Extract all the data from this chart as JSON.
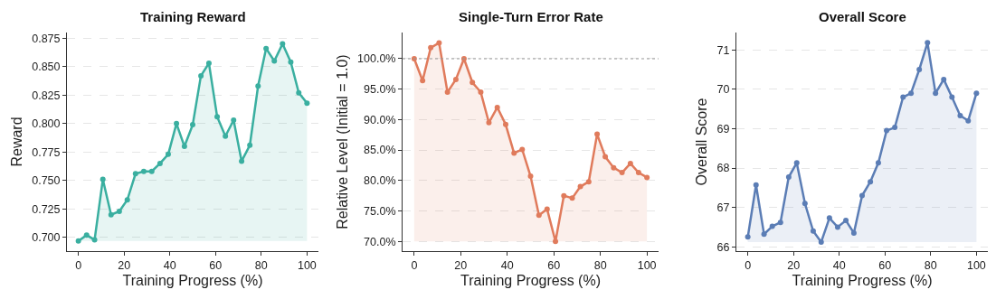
{
  "chart_data": [
    {
      "type": "area",
      "title": "Training Reward",
      "xlabel": "Training Progress (%)",
      "ylabel": "Reward",
      "x": [
        0,
        3.6,
        7.1,
        10.7,
        14.3,
        17.9,
        21.4,
        25,
        28.6,
        32.1,
        35.7,
        39.3,
        42.9,
        46.4,
        50,
        53.6,
        57.1,
        60.7,
        64.3,
        67.9,
        71.4,
        75,
        78.6,
        82.1,
        85.7,
        89.3,
        92.9,
        96.4,
        100
      ],
      "series": [
        {
          "color": "#3aafa0",
          "values": [
            0.697,
            0.702,
            0.698,
            0.751,
            0.72,
            0.723,
            0.733,
            0.756,
            0.758,
            0.758,
            0.765,
            0.773,
            0.8,
            0.78,
            0.799,
            0.842,
            0.853,
            0.806,
            0.789,
            0.803,
            0.767,
            0.781,
            0.833,
            0.866,
            0.855,
            0.87,
            0.854,
            0.827,
            0.818
          ]
        }
      ],
      "xlim": [
        -5,
        105
      ],
      "xticks": [
        0,
        20,
        40,
        60,
        80,
        100
      ],
      "ylim": [
        0.688,
        0.88
      ],
      "yticks": [
        {
          "value": 0.7,
          "label": "0.700"
        },
        {
          "value": 0.725,
          "label": "0.725"
        },
        {
          "value": 0.75,
          "label": "0.750"
        },
        {
          "value": 0.775,
          "label": "0.775"
        },
        {
          "value": 0.8,
          "label": "0.800"
        },
        {
          "value": 0.825,
          "label": "0.825"
        },
        {
          "value": 0.85,
          "label": "0.850"
        },
        {
          "value": 0.875,
          "label": "0.875"
        }
      ],
      "grid": "y",
      "marker": "circle",
      "line_style": "solid"
    },
    {
      "type": "area",
      "title": "Single-Turn Error Rate",
      "xlabel": "Training Progress (%)",
      "ylabel": "Relative Level (Initial = 1.0)",
      "x": [
        0,
        3.6,
        7.1,
        10.7,
        14.3,
        17.9,
        21.4,
        25,
        28.6,
        32.1,
        35.7,
        39.3,
        42.9,
        46.4,
        50,
        53.6,
        57.1,
        60.7,
        64.3,
        67.9,
        71.4,
        75,
        78.6,
        82.1,
        85.7,
        89.3,
        92.9,
        96.4,
        100
      ],
      "series": [
        {
          "color": "#e07b5c",
          "values": [
            100,
            96.4,
            101.8,
            102.6,
            94.5,
            96.6,
            100,
            96.1,
            94.5,
            89.5,
            92,
            89.2,
            84.5,
            85.1,
            80.7,
            74.3,
            75.3,
            70,
            77.5,
            77.1,
            79,
            79.8,
            87.6,
            83.9,
            82.1,
            81.3,
            82.8,
            81.3,
            80.5
          ]
        }
      ],
      "xlim": [
        -5,
        105
      ],
      "xticks": [
        0,
        20,
        40,
        60,
        80,
        100
      ],
      "ylim": [
        68.4,
        104.3
      ],
      "yticks": [
        {
          "value": 70,
          "label": "70.0%"
        },
        {
          "value": 75,
          "label": "75.0%"
        },
        {
          "value": 80,
          "label": "80.0%"
        },
        {
          "value": 85,
          "label": "85.0%"
        },
        {
          "value": 90,
          "label": "90.0%"
        },
        {
          "value": 95,
          "label": "95.0%"
        },
        {
          "value": 100,
          "label": "100.0%"
        }
      ],
      "ref_lines": [
        {
          "axis": "y",
          "value": 100,
          "color": "#999999",
          "line_style": "dotted"
        }
      ],
      "grid": "y",
      "marker": "circle",
      "line_style": "solid"
    },
    {
      "type": "area",
      "title": "Overall Score",
      "xlabel": "Training Progress (%)",
      "ylabel": "Overall Score",
      "x": [
        0,
        3.6,
        7.1,
        10.7,
        14.3,
        17.9,
        21.4,
        25,
        28.6,
        32.1,
        35.7,
        39.3,
        42.9,
        46.4,
        50,
        53.6,
        57.1,
        60.7,
        64.3,
        67.9,
        71.4,
        75,
        78.6,
        82.1,
        85.7,
        89.3,
        92.9,
        96.4,
        100
      ],
      "series": [
        {
          "color": "#5b7db5",
          "values": [
            66.25,
            67.57,
            66.32,
            66.52,
            66.62,
            67.77,
            68.13,
            67.1,
            66.4,
            66.12,
            66.73,
            66.5,
            66.67,
            66.35,
            67.3,
            67.65,
            68.13,
            68.95,
            69.03,
            69.8,
            69.9,
            70.5,
            71.18,
            69.9,
            70.25,
            69.8,
            69.33,
            69.2,
            69.9
          ]
        }
      ],
      "xlim": [
        -5,
        105
      ],
      "xticks": [
        0,
        20,
        40,
        60,
        80,
        100
      ],
      "ylim": [
        65.89,
        71.44
      ],
      "yticks": [
        66,
        67,
        68,
        69,
        70,
        71
      ],
      "grid": "y",
      "marker": "circle",
      "line_style": "solid"
    }
  ]
}
